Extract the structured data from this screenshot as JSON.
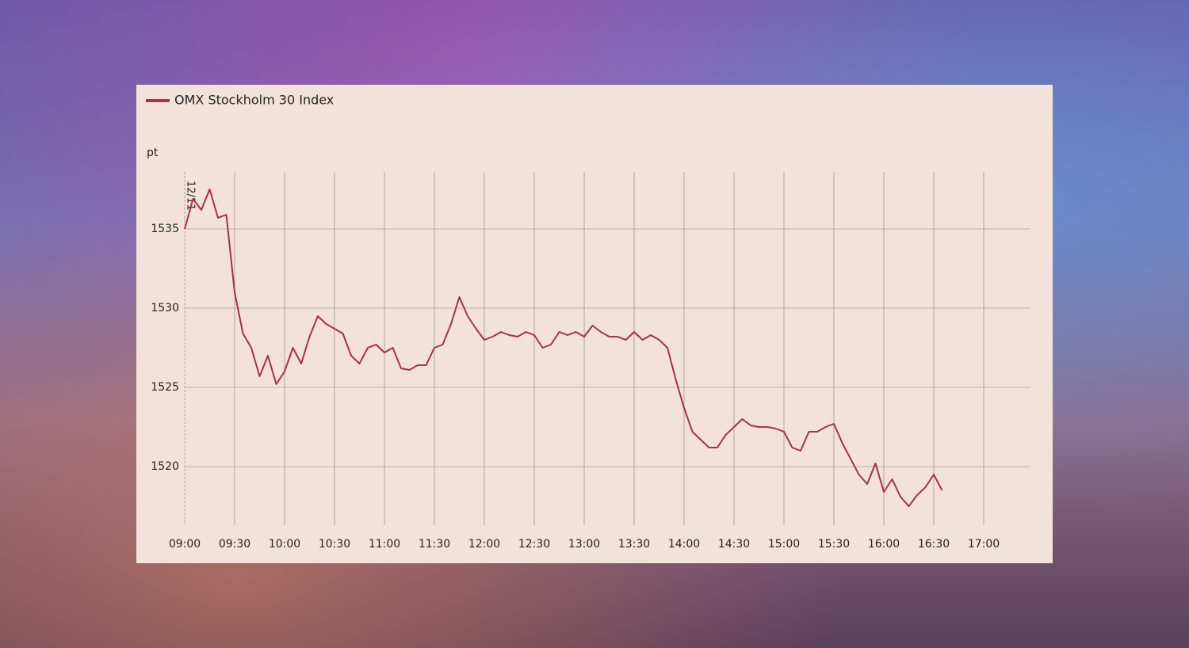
{
  "chart_data": {
    "type": "line",
    "legend_label": "OMX Stockholm 30 Index",
    "y_label": "pt",
    "annotation": "12/11",
    "x": [
      "09:00",
      "09:05",
      "09:10",
      "09:15",
      "09:20",
      "09:25",
      "09:30",
      "09:35",
      "09:40",
      "09:45",
      "09:50",
      "09:55",
      "10:00",
      "10:05",
      "10:10",
      "10:15",
      "10:20",
      "10:25",
      "10:30",
      "10:35",
      "10:40",
      "10:45",
      "10:50",
      "10:55",
      "11:00",
      "11:05",
      "11:10",
      "11:15",
      "11:20",
      "11:25",
      "11:30",
      "11:35",
      "11:40",
      "11:45",
      "11:50",
      "11:55",
      "12:00",
      "12:05",
      "12:10",
      "12:15",
      "12:20",
      "12:25",
      "12:30",
      "12:35",
      "12:40",
      "12:45",
      "12:50",
      "12:55",
      "13:00",
      "13:05",
      "13:10",
      "13:15",
      "13:20",
      "13:25",
      "13:30",
      "13:35",
      "13:40",
      "13:45",
      "13:50",
      "13:55",
      "14:00",
      "14:05",
      "14:10",
      "14:15",
      "14:20",
      "14:25",
      "14:30",
      "14:35",
      "14:40",
      "14:45",
      "14:50",
      "14:55",
      "15:00",
      "15:05",
      "15:10",
      "15:15",
      "15:20",
      "15:25",
      "15:30",
      "15:35",
      "15:40",
      "15:45",
      "15:50",
      "15:55",
      "16:00",
      "16:05",
      "16:10",
      "16:15",
      "16:20",
      "16:25",
      "16:30",
      "16:35"
    ],
    "series": [
      {
        "name": "OMX Stockholm 30 Index",
        "color": "#a8323f",
        "values": [
          1535.0,
          1536.9,
          1536.2,
          1537.5,
          1535.7,
          1535.9,
          1531.0,
          1528.4,
          1527.5,
          1525.7,
          1527.0,
          1525.2,
          1526.0,
          1527.5,
          1526.5,
          1528.2,
          1529.5,
          1529.0,
          1528.7,
          1528.4,
          1527.0,
          1526.5,
          1527.5,
          1527.7,
          1527.2,
          1527.5,
          1526.2,
          1526.1,
          1526.4,
          1526.4,
          1527.5,
          1527.7,
          1529.0,
          1530.7,
          1529.5,
          1528.7,
          1528.0,
          1528.2,
          1528.5,
          1528.3,
          1528.2,
          1528.5,
          1528.3,
          1527.5,
          1527.7,
          1528.5,
          1528.3,
          1528.5,
          1528.2,
          1528.9,
          1528.5,
          1528.2,
          1528.2,
          1528.0,
          1528.5,
          1528.0,
          1528.3,
          1528.0,
          1527.5,
          1525.5,
          1523.7,
          1522.2,
          1521.7,
          1521.2,
          1521.2,
          1522.0,
          1522.5,
          1523.0,
          1522.6,
          1522.5,
          1522.5,
          1522.4,
          1522.2,
          1521.2,
          1521.0,
          1522.2,
          1522.2,
          1522.5,
          1522.7,
          1521.5,
          1520.5,
          1519.5,
          1518.9,
          1520.2,
          1518.4,
          1519.2,
          1518.1,
          1517.5,
          1518.2,
          1518.7,
          1519.5,
          1518.5
        ]
      }
    ],
    "xlim": [
      "09:00",
      "17:30"
    ],
    "xticks": [
      "09:00",
      "09:30",
      "10:00",
      "10:30",
      "11:00",
      "11:30",
      "12:00",
      "12:30",
      "13:00",
      "13:30",
      "14:00",
      "14:30",
      "15:00",
      "15:30",
      "16:00",
      "16:30",
      "17:00"
    ],
    "ylim": [
      1516.3,
      1538.6
    ],
    "yticks": [
      1520,
      1525,
      1530,
      1535
    ],
    "grid": true
  }
}
